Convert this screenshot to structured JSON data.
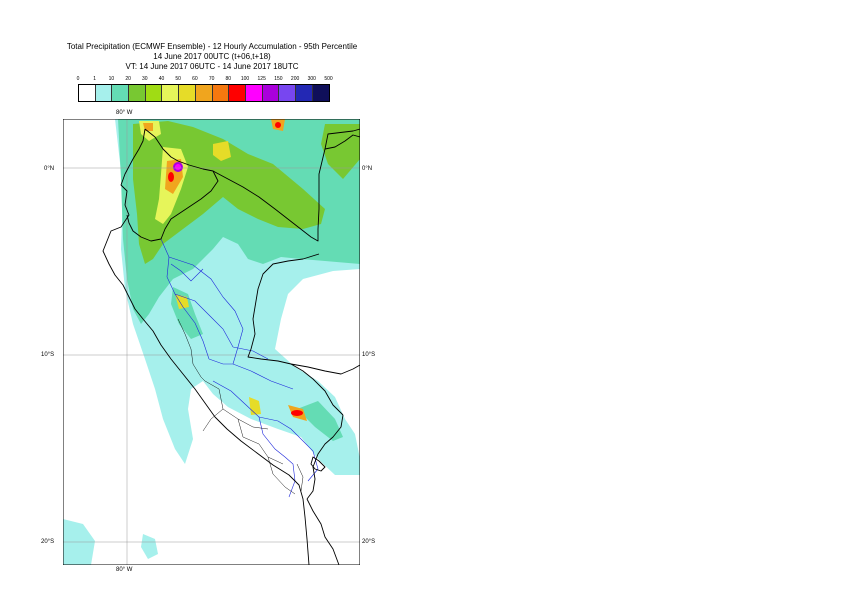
{
  "title": {
    "line1": "Total Precipitation (ECMWF Ensemble) - 12 Hourly Accumulation - 95th Percentile",
    "line2": "14 June 2017 00UTC (t+06,t+18)",
    "line3": "VT: 14 June 2017 06UTC - 14 June 2017 18UTC"
  },
  "legend": {
    "labels": [
      "0",
      "1",
      "10",
      "20",
      "30",
      "40",
      "50",
      "60",
      "70",
      "80",
      "100",
      "125",
      "150",
      "200",
      "300",
      "500"
    ],
    "colors": [
      "#ffffff",
      "#a6f0ec",
      "#64dcb4",
      "#78c832",
      "#a0dc14",
      "#e6f55a",
      "#e6dc28",
      "#f0a51e",
      "#f5780f",
      "#ff0000",
      "#ff00ff",
      "#aa00dc",
      "#7846f0",
      "#2328b4",
      "#0f0f5a"
    ]
  },
  "map": {
    "lon_labels": {
      "top": "80° W",
      "bottom": "80° W"
    },
    "lat_labels": [
      {
        "left": "0°N",
        "right": "0°N"
      },
      {
        "left": "10°S",
        "right": "10°S"
      },
      {
        "left": "20°S",
        "right": "20°S"
      }
    ]
  }
}
